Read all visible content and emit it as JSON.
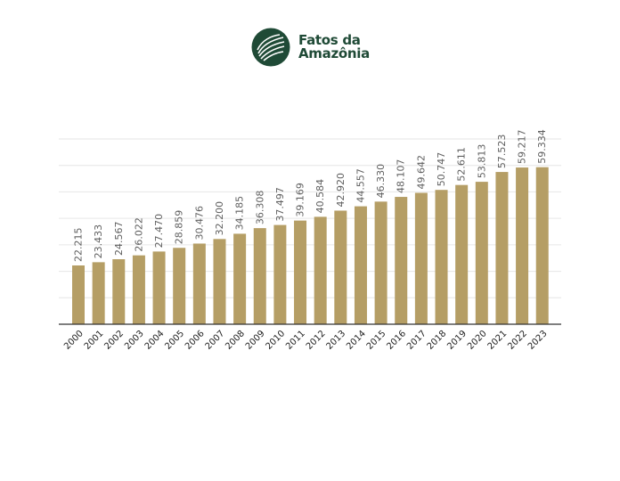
{
  "logo": {
    "line1": "Fatos da",
    "line2": "Amazônia",
    "icon": "leaf-emblem-icon",
    "color": "#1f4a36"
  },
  "chart_data": {
    "type": "bar",
    "categories": [
      "2000",
      "2001",
      "2002",
      "2003",
      "2004",
      "2005",
      "2006",
      "2007",
      "2008",
      "2009",
      "2010",
      "2011",
      "2012",
      "2013",
      "2014",
      "2015",
      "2016",
      "2017",
      "2018",
      "2019",
      "2020",
      "2021",
      "2022",
      "2023"
    ],
    "values": [
      22215,
      23433,
      24567,
      26022,
      27470,
      28859,
      30476,
      32200,
      34185,
      36308,
      37497,
      39169,
      40584,
      42920,
      44557,
      46330,
      48107,
      49642,
      50747,
      52611,
      53813,
      57523,
      59217,
      59334
    ],
    "data_labels": [
      "22.215",
      "23.433",
      "24.567",
      "26.022",
      "27.470",
      "28.859",
      "30.476",
      "32.200",
      "34.185",
      "36.308",
      "37.497",
      "39.169",
      "40.584",
      "42.920",
      "44.557",
      "46.330",
      "48.107",
      "49.642",
      "50.747",
      "52.611",
      "53.813",
      "57.523",
      "59.217",
      "59.334"
    ],
    "title": "",
    "xlabel": "",
    "ylabel": "",
    "ylim": [
      0,
      70000
    ],
    "grid": true,
    "bar_color": "#b59e65",
    "grid_color": "#e6e6e6",
    "axis_color": "#333333"
  }
}
